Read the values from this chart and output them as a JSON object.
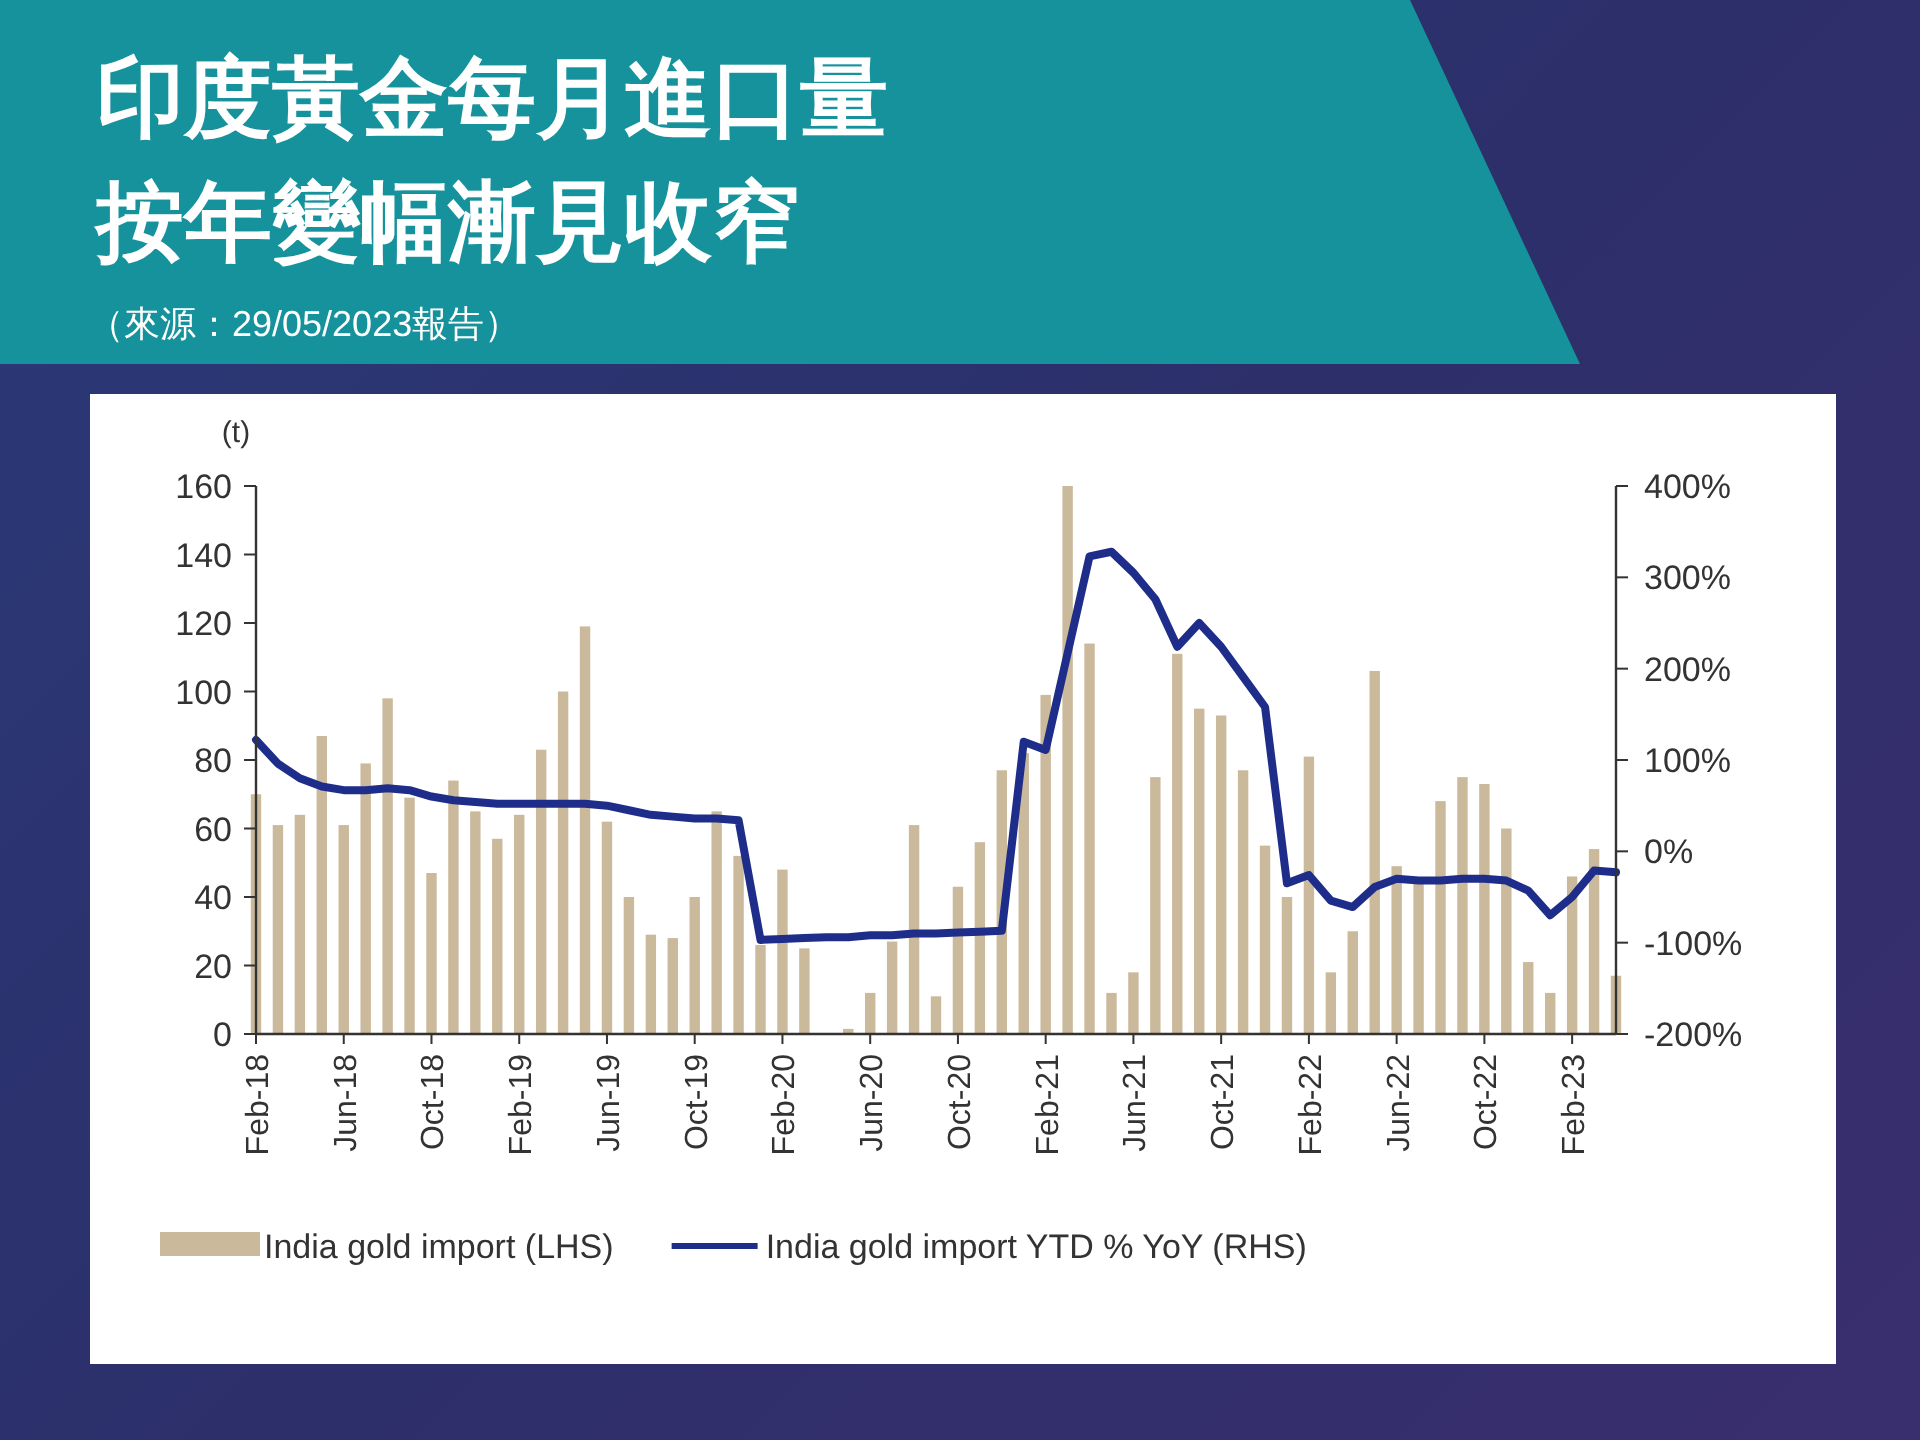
{
  "chart_data": {
    "type": "bar",
    "title": "印度黃金每月進口量按年變幅漸見收窄",
    "subtitle": "（來源：29/05/2023報告）",
    "ylabel": "(t)",
    "categories": [
      "Feb-18",
      null,
      null,
      null,
      "Jun-18",
      null,
      null,
      null,
      "Oct-18",
      null,
      null,
      null,
      "Feb-19",
      null,
      null,
      null,
      "Jun-19",
      null,
      null,
      null,
      "Oct-19",
      null,
      null,
      null,
      "Feb-20",
      null,
      null,
      null,
      "Jun-20",
      null,
      null,
      null,
      "Oct-20",
      null,
      null,
      null,
      "Feb-21",
      null,
      null,
      null,
      "Jun-21",
      null,
      null,
      null,
      "Oct-21",
      null,
      null,
      null,
      "Feb-22",
      null,
      null,
      null,
      "Jun-22",
      null,
      null,
      null,
      "Oct-22",
      null,
      null,
      null,
      "Feb-23",
      null,
      null
    ],
    "series": [
      {
        "name": "India gold import (LHS)",
        "color": "#cbb99c",
        "values": [
          70,
          61,
          64,
          87,
          61,
          79,
          98,
          69,
          47,
          74,
          65,
          57,
          64,
          83,
          100,
          119,
          62,
          40,
          29,
          28,
          40,
          65,
          52,
          26,
          48,
          25,
          0,
          1.5,
          12,
          27,
          61,
          11,
          43,
          56,
          77,
          82,
          99,
          160,
          114,
          12,
          18,
          75,
          111,
          95,
          93,
          77,
          55,
          40,
          81,
          18,
          30,
          106,
          49,
          45,
          68,
          75,
          73,
          60,
          21,
          12,
          46,
          54,
          17
        ]
      },
      {
        "name": "India gold import YTD % YoY (RHS)",
        "type": "line",
        "axis": "y2",
        "color": "#1f2d8a",
        "values": [
          122,
          96,
          80,
          71,
          67,
          67,
          69,
          67,
          60,
          56,
          54,
          52,
          52,
          52,
          52,
          52,
          50,
          45,
          40,
          38,
          36,
          36,
          34,
          -97,
          -96,
          -95,
          -94,
          -94,
          -92,
          -92,
          -90,
          -90,
          -89,
          -88,
          -87,
          120,
          111,
          217,
          323,
          328,
          305,
          276,
          224,
          250,
          224,
          191,
          158,
          -35,
          -26,
          -54,
          -61,
          -39,
          -30,
          -32,
          -32,
          -30,
          -30,
          -32,
          -43,
          -70,
          -50,
          -21,
          -23
        ]
      }
    ],
    "ylim": [
      0,
      160
    ],
    "yticks": [
      0,
      20,
      40,
      60,
      80,
      100,
      120,
      140,
      160
    ],
    "y2lim": [
      -200,
      400
    ],
    "y2ticks": [
      {
        "value": -200,
        "label": "-200%"
      },
      {
        "value": -100,
        "label": "-100%"
      },
      {
        "value": 0,
        "label": "0%"
      },
      {
        "value": 100,
        "label": "100%"
      },
      {
        "value": 200,
        "label": "200%"
      },
      {
        "value": 300,
        "label": "300%"
      },
      {
        "value": 400,
        "label": "400%"
      }
    ],
    "legend": "bottom",
    "grid": false
  }
}
